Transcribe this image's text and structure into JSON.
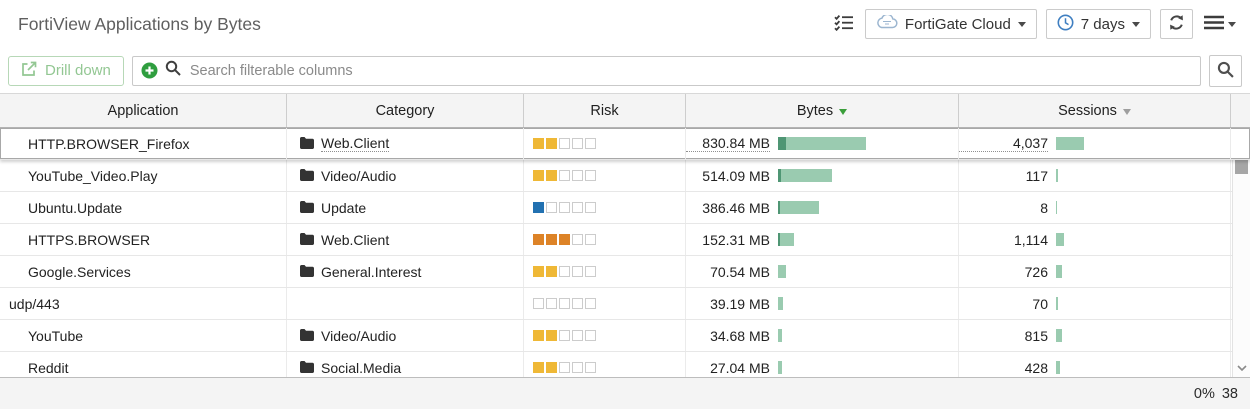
{
  "header": {
    "title": "FortiView Applications by Bytes",
    "device_dropdown_label": "FortiGate Cloud",
    "time_range_label": "7 days"
  },
  "toolbar": {
    "drill_down_label": "Drill down",
    "search_placeholder": "Search filterable columns"
  },
  "table": {
    "columns": [
      "Application",
      "Category",
      "Risk",
      "Bytes",
      "Sessions"
    ],
    "sort": {
      "column": "Bytes",
      "direction": "desc"
    },
    "highlighted_row": 0,
    "rows": [
      {
        "application": "HTTP.BROWSER_Firefox",
        "category": "Web.Client",
        "risk_level": 2,
        "risk_color": "#efb836",
        "bytes": "830.84 MB",
        "bytes_bar_w": 88,
        "bytes_bar_dark": 8,
        "sessions": "4,037",
        "sessions_bar_w": 28
      },
      {
        "application": "YouTube_Video.Play",
        "category": "Video/Audio",
        "risk_level": 2,
        "risk_color": "#efb836",
        "bytes": "514.09 MB",
        "bytes_bar_w": 54,
        "bytes_bar_dark": 3,
        "sessions": "117",
        "sessions_bar_w": 2
      },
      {
        "application": "Ubuntu.Update",
        "category": "Update",
        "risk_level": 1,
        "risk_color": "#2271b1",
        "bytes": "386.46 MB",
        "bytes_bar_w": 41,
        "bytes_bar_dark": 2,
        "sessions": "8",
        "sessions_bar_w": 1
      },
      {
        "application": "HTTPS.BROWSER",
        "category": "Web.Client",
        "risk_level": 3,
        "risk_color": "#dd8327",
        "bytes": "152.31 MB",
        "bytes_bar_w": 16,
        "bytes_bar_dark": 2,
        "sessions": "1,114",
        "sessions_bar_w": 8
      },
      {
        "application": "Google.Services",
        "category": "General.Interest",
        "risk_level": 2,
        "risk_color": "#efb836",
        "bytes": "70.54 MB",
        "bytes_bar_w": 8,
        "bytes_bar_dark": 0,
        "sessions": "726",
        "sessions_bar_w": 6
      },
      {
        "application": "udp/443",
        "category": "",
        "risk_level": 0,
        "risk_color": "",
        "bytes": "39.19 MB",
        "bytes_bar_w": 5,
        "bytes_bar_dark": 0,
        "sessions": "70",
        "sessions_bar_w": 2,
        "unindented": true
      },
      {
        "application": "YouTube",
        "category": "Video/Audio",
        "risk_level": 2,
        "risk_color": "#efb836",
        "bytes": "34.68 MB",
        "bytes_bar_w": 4,
        "bytes_bar_dark": 0,
        "sessions": "815",
        "sessions_bar_w": 6
      },
      {
        "application": "Reddit",
        "category": "Social.Media",
        "risk_level": 2,
        "risk_color": "#efb836",
        "bytes": "27.04 MB",
        "bytes_bar_w": 4,
        "bytes_bar_dark": 0,
        "sessions": "428",
        "sessions_bar_w": 4
      }
    ]
  },
  "statusbar": {
    "progress": "0%",
    "count": "38"
  },
  "colors": {
    "accent_green": "#3a9e3a",
    "drill_green": "#93c793",
    "plus_green": "#2f9e3f",
    "bar_light_green": "#9acbb0",
    "bar_dark_green": "#4f9674",
    "risk_low_blue": "#2271b1",
    "risk_medium_yellow": "#efb836",
    "risk_high_orange": "#dd8327",
    "icon_blue": "#3f7fc1",
    "cloud_icon_blue": "#9cb6d0"
  }
}
